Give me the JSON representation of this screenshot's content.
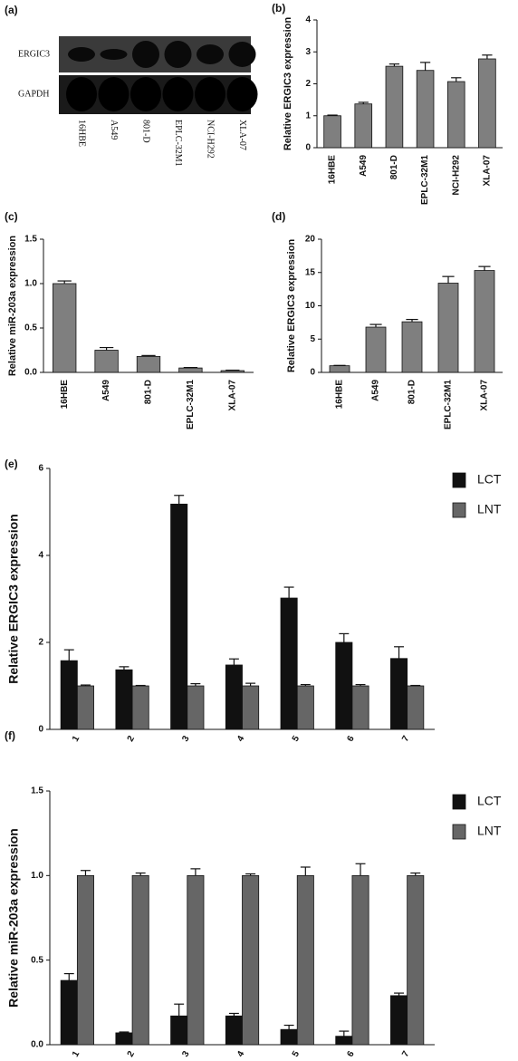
{
  "chart_data": [
    {
      "type": "blot",
      "panel_label": "(a)",
      "rows": [
        "ERGIC3",
        "GAPDH"
      ],
      "categories": [
        "16HBE",
        "A549",
        "801-D",
        "EPLC-32M1",
        "NCI-H292",
        "XLA-07"
      ]
    },
    {
      "type": "bar",
      "panel_label": "(b)",
      "y_label": "Relative ERGIC3 expression",
      "categories": [
        "16HBE",
        "A549",
        "801-D",
        "EPLC-32M1",
        "NCI-H292",
        "XLA-07"
      ],
      "values": [
        1.0,
        1.37,
        2.55,
        2.42,
        2.07,
        2.78
      ],
      "errors": [
        0.02,
        0.05,
        0.07,
        0.25,
        0.12,
        0.12
      ],
      "color": "#7f7f7f",
      "ylim": [
        0,
        4
      ],
      "yticks": [
        0,
        1,
        2,
        3,
        4
      ]
    },
    {
      "type": "bar",
      "panel_label": "(c)",
      "y_label": "Relative miR-203a expression",
      "categories": [
        "16HBE",
        "A549",
        "801-D",
        "EPLC-32M1",
        "XLA-07"
      ],
      "values": [
        1.0,
        0.25,
        0.18,
        0.05,
        0.02
      ],
      "errors": [
        0.03,
        0.03,
        0.01,
        0.005,
        0.005
      ],
      "color": "#7f7f7f",
      "ylim": [
        0,
        1.5
      ],
      "yticks": [
        {
          "value": 0,
          "label": "0.0"
        },
        {
          "value": 0.5,
          "label": "0.5"
        },
        {
          "value": 1,
          "label": "1.0"
        },
        {
          "value": 1.5,
          "label": "1.5"
        }
      ]
    },
    {
      "type": "bar",
      "panel_label": "(d)",
      "y_label": "Relative ERGIC3 expression",
      "categories": [
        "16HBE",
        "A549",
        "801-D",
        "EPLC-32M1",
        "XLA-07"
      ],
      "values": [
        1.0,
        6.8,
        7.6,
        13.4,
        15.3
      ],
      "errors": [
        0.05,
        0.4,
        0.35,
        1.0,
        0.6
      ],
      "color": "#7f7f7f",
      "ylim": [
        0,
        20
      ],
      "yticks": [
        0,
        5,
        10,
        15,
        20
      ]
    },
    {
      "type": "grouped_bar",
      "panel_label": "(e)",
      "y_label": "Relative ERGIC3 expression",
      "categories": [
        "1",
        "2",
        "3",
        "4",
        "5",
        "6",
        "7"
      ],
      "series": [
        {
          "name": "LCT",
          "color": "#111111",
          "values": [
            1.58,
            1.37,
            5.18,
            1.48,
            3.02,
            2.0,
            1.63
          ],
          "errors": [
            0.25,
            0.07,
            0.2,
            0.14,
            0.25,
            0.2,
            0.27
          ]
        },
        {
          "name": "LNT",
          "color": "#666666",
          "values": [
            1.0,
            1.0,
            1.0,
            1.0,
            1.0,
            1.0,
            1.0
          ],
          "errors": [
            0.02,
            0.01,
            0.05,
            0.06,
            0.03,
            0.03,
            0.01
          ]
        }
      ],
      "ylim": [
        0,
        6
      ],
      "yticks": [
        0,
        2,
        4,
        6
      ],
      "legend": "right"
    },
    {
      "type": "grouped_bar",
      "panel_label": "(f)",
      "y_label": "Relative miR-203a expression",
      "categories": [
        "1",
        "2",
        "3",
        "4",
        "5",
        "6",
        "7"
      ],
      "series": [
        {
          "name": "LCT",
          "color": "#111111",
          "values": [
            0.38,
            0.07,
            0.17,
            0.17,
            0.09,
            0.05,
            0.29
          ],
          "errors": [
            0.04,
            0.005,
            0.07,
            0.015,
            0.025,
            0.03,
            0.015
          ]
        },
        {
          "name": "LNT",
          "color": "#666666",
          "values": [
            1.0,
            1.0,
            1.0,
            1.0,
            1.0,
            1.0,
            1.0
          ],
          "errors": [
            0.03,
            0.015,
            0.04,
            0.01,
            0.05,
            0.07,
            0.015
          ]
        }
      ],
      "ylim": [
        0,
        1.5
      ],
      "yticks": [
        {
          "value": 0,
          "label": "0.0"
        },
        {
          "value": 0.5,
          "label": "0.5"
        },
        {
          "value": 1,
          "label": "1.0"
        },
        {
          "value": 1.5,
          "label": "1.5"
        }
      ],
      "legend": "right"
    }
  ]
}
